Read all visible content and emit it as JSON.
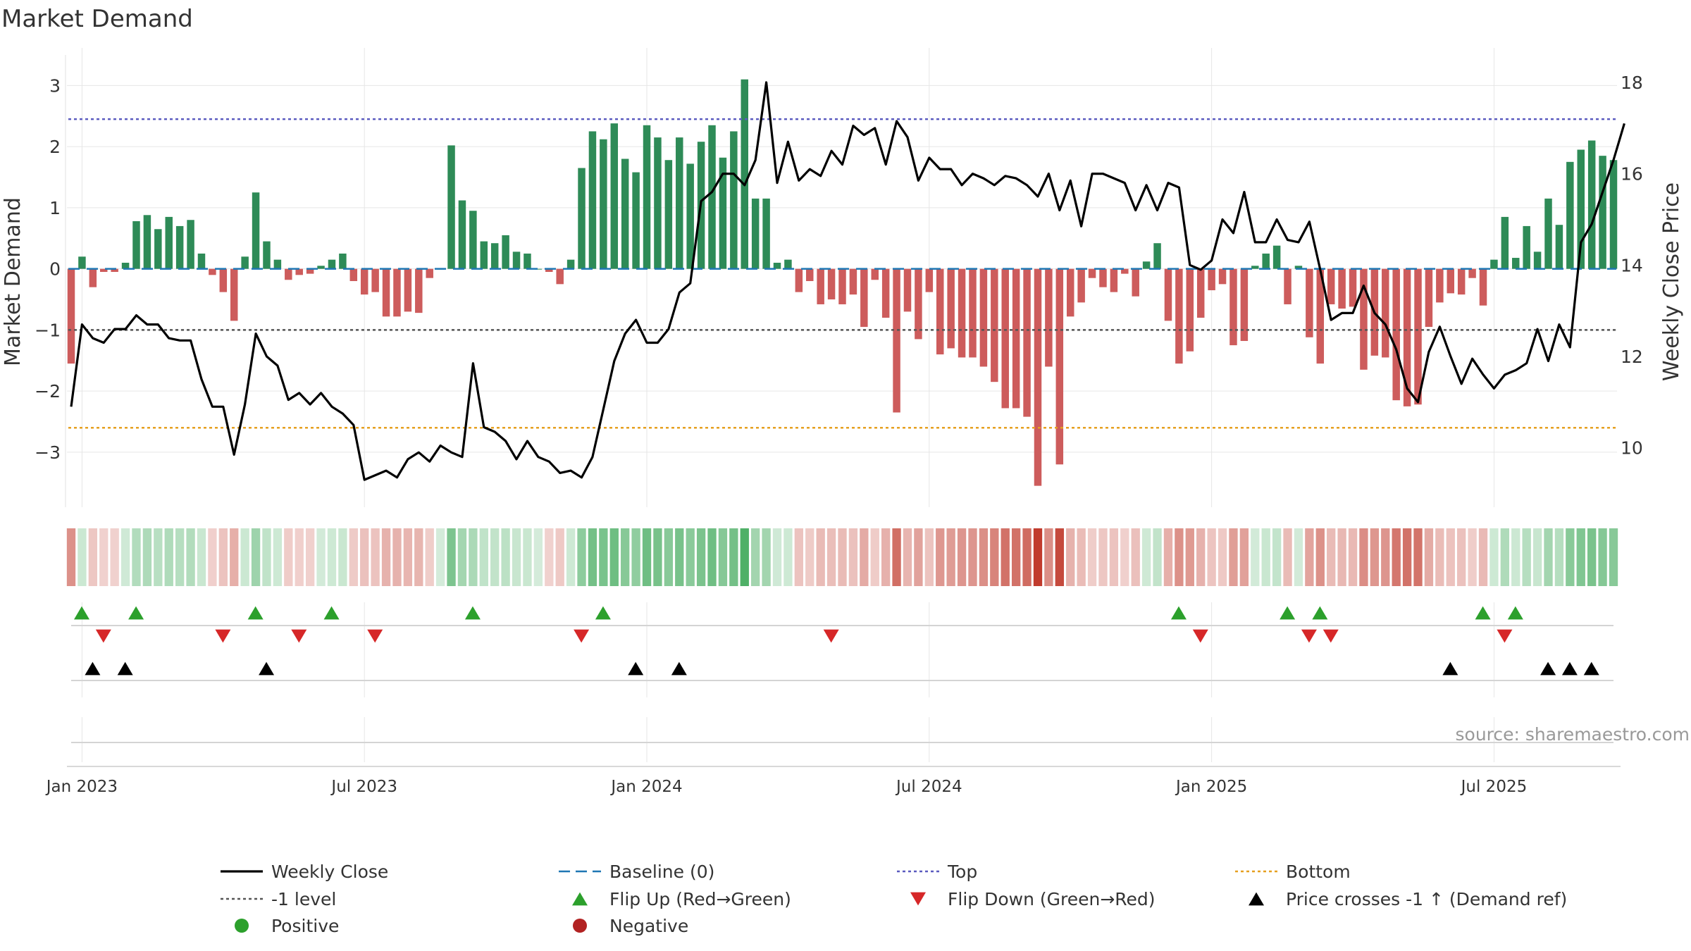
{
  "chart_data": {
    "type": "bar",
    "title": "Market Demand",
    "ylabel": "Market Demand",
    "y2label": "Weekly Close Price",
    "ylim": [
      -3.9,
      3.5
    ],
    "y2lim": [
      8.7,
      18.6
    ],
    "yticks": [
      3,
      2,
      1,
      0,
      -1,
      -2,
      -3
    ],
    "ytick_labels": [
      "3",
      "2",
      "1",
      "0",
      "−1",
      "−2",
      "−3"
    ],
    "y2ticks": [
      18,
      16,
      14,
      12,
      10
    ],
    "y2tick_labels": [
      "18",
      "16",
      "14",
      "12",
      "10"
    ],
    "xticks": [
      {
        "label": "Jan 2023",
        "week": 1
      },
      {
        "label": "Jul 2023",
        "week": 27
      },
      {
        "label": "Jan 2024",
        "week": 53
      },
      {
        "label": "Jul 2024",
        "week": 79
      },
      {
        "label": "Jan 2025",
        "week": 105
      },
      {
        "label": "Jul 2025",
        "week": 131
      }
    ],
    "reference_lines": {
      "top": 2.45,
      "bottom": -2.6,
      "minus_one": -1,
      "baseline": 0
    },
    "demand": [
      -1.55,
      0.2,
      -0.3,
      -0.05,
      -0.05,
      0.1,
      0.78,
      0.88,
      0.65,
      0.85,
      0.7,
      0.8,
      0.25,
      -0.1,
      -0.38,
      -0.85,
      0.2,
      1.25,
      0.45,
      0.15,
      -0.18,
      -0.1,
      -0.08,
      0.05,
      0.15,
      0.25,
      -0.2,
      -0.42,
      -0.38,
      -0.78,
      -0.78,
      -0.7,
      -0.72,
      -0.15,
      0,
      2.02,
      1.12,
      0.95,
      0.45,
      0.42,
      0.55,
      0.28,
      0.25,
      0,
      -0.05,
      -0.25,
      0.15,
      1.65,
      2.25,
      2.12,
      2.38,
      1.8,
      1.58,
      2.35,
      2.15,
      1.78,
      2.15,
      1.72,
      2.08,
      2.35,
      1.82,
      2.25,
      3.1,
      1.15,
      1.15,
      0.1,
      0.15,
      -0.38,
      -0.2,
      -0.58,
      -0.5,
      -0.58,
      -0.42,
      -0.95,
      -0.18,
      -0.8,
      -2.35,
      -0.7,
      -1.15,
      -0.38,
      -1.4,
      -1.3,
      -1.45,
      -1.45,
      -1.6,
      -1.85,
      -2.28,
      -2.28,
      -2.42,
      -3.55,
      -1.6,
      -3.2,
      -0.78,
      -0.55,
      -0.15,
      -0.3,
      -0.38,
      -0.08,
      -0.45,
      0.12,
      0.42,
      -0.85,
      -1.55,
      -1.35,
      -0.8,
      -0.35,
      -0.25,
      -1.25,
      -1.18,
      0.05,
      0.25,
      0.38,
      -0.58,
      0.05,
      -1.12,
      -1.55,
      -0.58,
      -0.65,
      -0.62,
      -1.65,
      -1.42,
      -1.45,
      -2.15,
      -2.25,
      -2.22,
      -0.95,
      -0.55,
      -0.4,
      -0.42,
      -0.15,
      -0.6,
      0.15,
      0.85,
      0.18,
      0.7,
      0.28,
      1.15,
      0.72,
      1.75,
      1.95,
      2.1,
      1.85,
      1.78
    ],
    "weekly_close": [
      10.9,
      12.7,
      12.4,
      12.3,
      12.6,
      12.6,
      12.9,
      12.7,
      12.7,
      12.4,
      12.35,
      12.35,
      11.5,
      10.9,
      10.9,
      9.85,
      10.95,
      12.5,
      12.0,
      11.8,
      11.05,
      11.2,
      10.95,
      11.2,
      10.9,
      10.75,
      10.5,
      9.3,
      9.4,
      9.5,
      9.35,
      9.75,
      9.9,
      9.7,
      10.05,
      9.9,
      9.8,
      11.85,
      10.45,
      10.35,
      10.15,
      9.75,
      10.15,
      9.8,
      9.7,
      9.45,
      9.5,
      9.35,
      9.8,
      10.85,
      11.9,
      12.5,
      12.8,
      12.3,
      12.3,
      12.6,
      13.4,
      13.6,
      15.4,
      15.6,
      16.0,
      16.0,
      15.75,
      16.3,
      18.0,
      15.8,
      16.7,
      15.85,
      16.1,
      15.95,
      16.5,
      16.2,
      17.05,
      16.85,
      17.0,
      16.2,
      17.15,
      16.8,
      15.85,
      16.35,
      16.1,
      16.1,
      15.75,
      16.0,
      15.9,
      15.75,
      15.95,
      15.9,
      15.75,
      15.5,
      16.0,
      15.2,
      15.85,
      14.85,
      16.0,
      16.0,
      15.9,
      15.8,
      15.2,
      15.75,
      15.2,
      15.8,
      15.7,
      14.0,
      13.9,
      14.1,
      15.0,
      14.7,
      15.6,
      14.5,
      14.5,
      15.0,
      14.55,
      14.5,
      14.95,
      13.9,
      12.8,
      12.95,
      12.95,
      13.55,
      12.95,
      12.7,
      12.15,
      11.3,
      11.0,
      12.1,
      12.65,
      12.0,
      11.4,
      11.95,
      11.6,
      11.3,
      11.6,
      11.7,
      11.85,
      12.6,
      11.9,
      12.7,
      12.2,
      14.5,
      14.9,
      15.6,
      16.3,
      17.1
    ],
    "flip_up_weeks": [
      0,
      5,
      16,
      23,
      36,
      48,
      101,
      111,
      114,
      129,
      132
    ],
    "flip_down_weeks": [
      2,
      13,
      20,
      27,
      46,
      69,
      103,
      113,
      115,
      131
    ],
    "price_cross_weeks": [
      1,
      4,
      17,
      51,
      55,
      126,
      135,
      137,
      139
    ],
    "legend": [
      {
        "label": "Weekly Close",
        "color": "#000000",
        "symbol": "solid"
      },
      {
        "label": "Baseline (0)",
        "color": "#1f77b4",
        "symbol": "dashed"
      },
      {
        "label": "Top",
        "color": "#5b5bbf",
        "symbol": "dotted"
      },
      {
        "label": "Bottom",
        "color": "#e6a020",
        "symbol": "dotted"
      },
      {
        "label": "-1 level",
        "color": "#555555",
        "symbol": "dotted"
      },
      {
        "label": "Flip Up (Red→Green)",
        "color": "#2ca02c",
        "symbol": "triangle-up"
      },
      {
        "label": "Flip Down (Green→Red)",
        "color": "#d62728",
        "symbol": "triangle-down"
      },
      {
        "label": "Price crosses -1 ↑ (Demand ref)",
        "color": "#000000",
        "symbol": "triangle-up"
      },
      {
        "label": "Positive",
        "color": "#2ca02c",
        "symbol": "circle"
      },
      {
        "label": "Negative",
        "color": "#b22222",
        "symbol": "circle"
      }
    ],
    "source": "source: sharemaestro.com",
    "colors": {
      "positive": "#2e8b57",
      "negative": "#cd5c5c",
      "strip_positive": "#3aa655",
      "strip_negative": "#c0392b",
      "grid": "#e6e6e6"
    }
  }
}
